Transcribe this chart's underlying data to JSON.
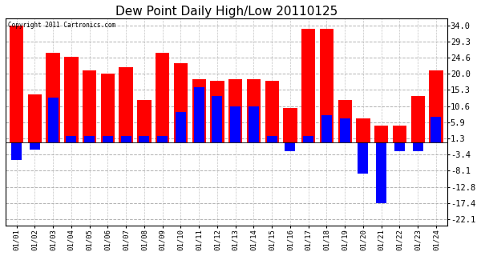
{
  "title": "Dew Point Daily High/Low 20110125",
  "copyright": "Copyright 2011 Cartronics.com",
  "dates": [
    "01/01",
    "01/02",
    "01/03",
    "01/04",
    "01/05",
    "01/06",
    "01/07",
    "01/08",
    "01/09",
    "01/10",
    "01/11",
    "01/12",
    "01/13",
    "01/14",
    "01/15",
    "01/16",
    "01/17",
    "01/18",
    "01/19",
    "01/20",
    "01/21",
    "01/22",
    "01/23",
    "01/24"
  ],
  "highs": [
    34.0,
    14.0,
    26.0,
    25.0,
    21.0,
    20.0,
    22.0,
    12.5,
    26.0,
    23.0,
    18.5,
    18.0,
    18.5,
    18.5,
    18.0,
    10.0,
    33.0,
    33.0,
    12.5,
    7.0,
    5.0,
    5.0,
    13.5,
    21.0
  ],
  "lows": [
    -5.0,
    -2.0,
    13.0,
    2.0,
    2.0,
    2.0,
    2.0,
    2.0,
    2.0,
    9.0,
    16.0,
    13.5,
    10.5,
    10.5,
    2.0,
    -2.5,
    2.0,
    8.0,
    7.0,
    -9.0,
    -17.5,
    -2.5,
    -2.5,
    7.5
  ],
  "high_color": "#ff0000",
  "low_color": "#0000ff",
  "background_color": "#ffffff",
  "grid_color": "#aaaaaa",
  "title_fontsize": 11,
  "yticks": [
    34.0,
    29.3,
    24.6,
    20.0,
    15.3,
    10.6,
    5.9,
    1.3,
    -3.4,
    -8.1,
    -12.8,
    -17.4,
    -22.1
  ],
  "ylim": [
    -24,
    36
  ],
  "bar_width": 0.38
}
